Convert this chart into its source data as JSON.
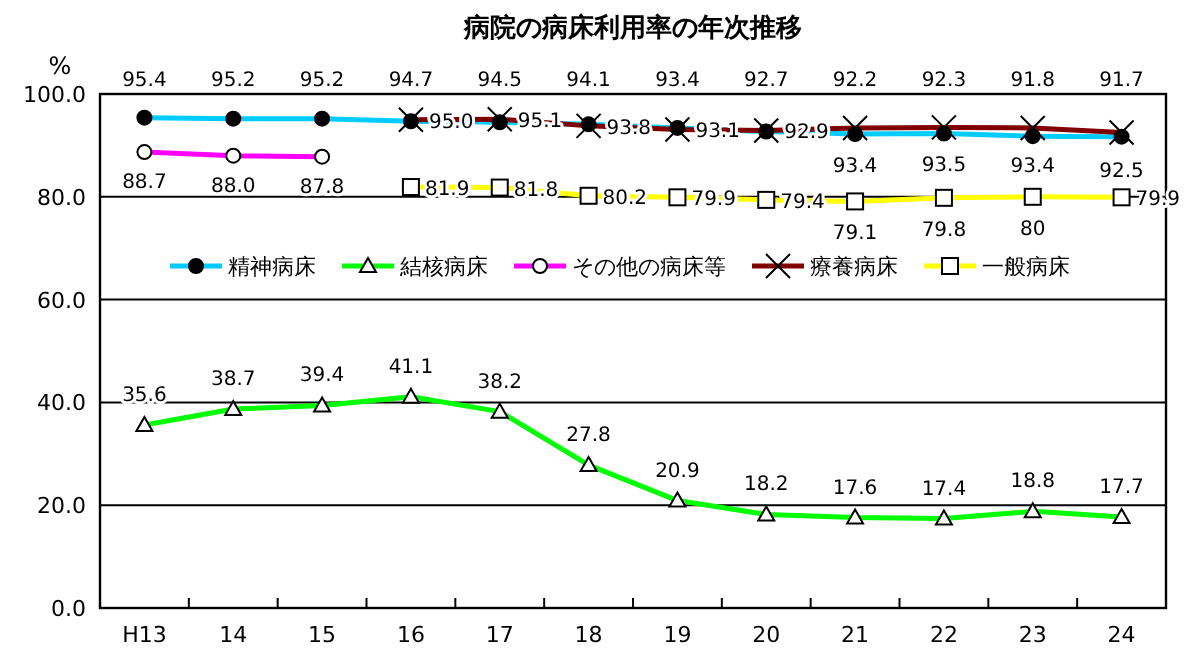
{
  "chart_data": {
    "type": "line",
    "title": "病院の病床利用率の年次推移",
    "ylabel": "%",
    "categories": [
      "H13",
      "14",
      "15",
      "16",
      "17",
      "18",
      "19",
      "20",
      "21",
      "22",
      "23",
      "24"
    ],
    "ylim": [
      0,
      100
    ],
    "yticks": [
      {
        "value": 0,
        "label": "0.0"
      },
      {
        "value": 20,
        "label": "20.0"
      },
      {
        "value": 40,
        "label": "40.0"
      },
      {
        "value": 60,
        "label": "60.0"
      },
      {
        "value": 80,
        "label": "80.0"
      },
      {
        "value": 100,
        "label": "100.0"
      }
    ],
    "grid": "y",
    "legend": "top",
    "series": [
      {
        "name": "精神病床",
        "color": "#00ccff",
        "marker": "circle",
        "values": [
          95.4,
          95.2,
          95.2,
          94.7,
          94.5,
          94.1,
          93.4,
          92.7,
          92.2,
          92.3,
          91.8,
          91.7
        ],
        "value_labels": [
          "95.4",
          "95.2",
          "95.2",
          "94.7",
          "94.5",
          "94.1",
          "93.4",
          "92.7",
          "92.2",
          "92.3",
          "91.8",
          "91.7"
        ]
      },
      {
        "name": "結核病床",
        "color": "#00ff00",
        "marker": "triangle",
        "values": [
          35.6,
          38.7,
          39.4,
          41.1,
          38.2,
          27.8,
          20.9,
          18.2,
          17.6,
          17.4,
          18.8,
          17.7
        ],
        "value_labels": [
          "35.6",
          "38.7",
          "39.4",
          "41.1",
          "38.2",
          "27.8",
          "20.9",
          "18.2",
          "17.6",
          "17.4",
          "18.8",
          "17.7"
        ]
      },
      {
        "name": "その他の病床等",
        "color": "#ff00ff",
        "marker": "circle",
        "values": [
          88.7,
          88.0,
          87.8,
          null,
          null,
          null,
          null,
          null,
          null,
          null,
          null,
          null
        ],
        "value_labels": [
          "88.7",
          "88.0",
          "87.8",
          null,
          null,
          null,
          null,
          null,
          null,
          null,
          null,
          null
        ]
      },
      {
        "name": "療養病床",
        "color": "#800000",
        "marker": "cross",
        "values": [
          null,
          null,
          null,
          95.0,
          95.1,
          93.8,
          93.1,
          92.9,
          93.4,
          93.5,
          93.4,
          92.5
        ],
        "value_labels": [
          null,
          null,
          null,
          "95.0",
          "95.1",
          "93.8",
          "93.1",
          "92.9",
          "93.4",
          "93.5",
          "93.4",
          "92.5"
        ]
      },
      {
        "name": "一般病床",
        "color": "#ffff00",
        "marker": "square",
        "values": [
          null,
          null,
          null,
          81.9,
          81.8,
          80.2,
          79.9,
          79.4,
          79.1,
          79.8,
          80,
          79.9
        ],
        "value_labels": [
          null,
          null,
          null,
          "81.9",
          "81.8",
          "80.2",
          "79.9",
          "79.4",
          "79.1",
          "79.8",
          "80",
          "79.9"
        ]
      }
    ]
  }
}
